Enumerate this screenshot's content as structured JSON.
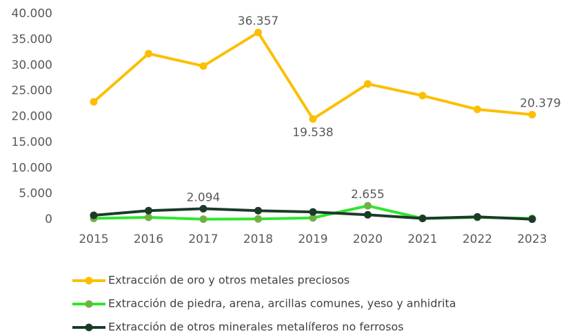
{
  "chart_data": {
    "type": "line",
    "categories": [
      "2015",
      "2016",
      "2017",
      "2018",
      "2019",
      "2020",
      "2021",
      "2022",
      "2023"
    ],
    "series": [
      {
        "name": "Extracción de oro y otros metales preciosos",
        "color": "#fcbf00",
        "marker_color": "#fcbf00",
        "values": [
          22880,
          32240,
          29830,
          36357,
          19538,
          26350,
          24080,
          21400,
          20379
        ],
        "value_labels": [
          null,
          null,
          null,
          "36.357",
          "19.538",
          null,
          null,
          null,
          "20.379"
        ]
      },
      {
        "name": "Extracción de piedra, arena, arcillas comunes, yeso y anhidrita",
        "color": "#2ee62e",
        "marker_color": "#72b043",
        "values": [
          200,
          400,
          50,
          100,
          300,
          2655,
          200,
          400,
          200
        ],
        "value_labels": [
          null,
          null,
          null,
          null,
          null,
          "2.655",
          null,
          null,
          null
        ]
      },
      {
        "name": "Extracción de otros minerales metalíferos no ferrosos",
        "color": "#1b3b2a",
        "marker_color": "#1b3b2a",
        "values": [
          800,
          1700,
          2094,
          1700,
          1450,
          900,
          200,
          500,
          50
        ],
        "value_labels": [
          null,
          null,
          "2.094",
          null,
          null,
          null,
          null,
          null,
          null
        ]
      }
    ],
    "ylim": [
      0,
      40000
    ],
    "yticks": [
      0,
      {
        "value": 5000,
        "label": "5.000"
      },
      {
        "value": 10000,
        "label": "10.000"
      },
      {
        "value": 15000,
        "label": "15.000"
      },
      {
        "value": 20000,
        "label": "20.000"
      },
      {
        "value": 25000,
        "label": "25.000"
      },
      {
        "value": 30000,
        "label": "30.000"
      },
      {
        "value": 35000,
        "label": "35.000"
      },
      {
        "value": 40000,
        "label": "40.000"
      }
    ],
    "grid": false,
    "legend": "bottom"
  }
}
